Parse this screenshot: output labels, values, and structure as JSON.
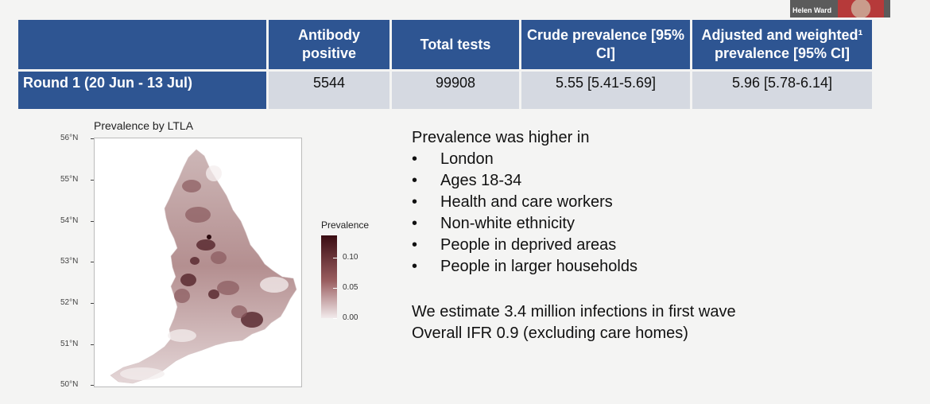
{
  "table": {
    "headers": [
      {
        "label": "Antibody positive"
      },
      {
        "label": "Total tests"
      },
      {
        "label": "Crude prevalence [95% CI]"
      },
      {
        "label": "Adjusted and weighted¹ prevalence [95% CI]"
      }
    ],
    "rows": [
      {
        "label": "Round 1 (20 Jun - 13 Jul)",
        "antibody_positive": "5544",
        "total_tests": "99908",
        "crude_prevalence": "5.55 [5.41-5.69]",
        "adjusted_prevalence": "5.96 [5.78-6.14]"
      }
    ]
  },
  "webcam": {
    "name": "Helen Ward"
  },
  "map": {
    "title": "Prevalence by LTLA",
    "lat_ticks": [
      "56°N",
      "55°N",
      "54°N",
      "53°N",
      "52°N",
      "51°N",
      "50°N"
    ],
    "legend_title": "Prevalence",
    "legend_ticks": [
      "0.10",
      "0.05",
      "0.00"
    ],
    "colors": {
      "high": "#3a0c12",
      "mid": "#9a5e60",
      "low": "#f2ebec"
    }
  },
  "findings": {
    "lead": "Prevalence was higher in",
    "items": [
      "London",
      "Ages 18-34",
      "Health and care workers",
      "Non-white ethnicity",
      "People in deprived areas",
      "People in larger households"
    ]
  },
  "estimates": {
    "line1": "We estimate 3.4 million infections in first wave",
    "line2": "Overall IFR 0.9 (excluding care homes)"
  },
  "colors": {
    "header_blue": "#2e5592",
    "cell_grey": "#d5d9e1"
  }
}
